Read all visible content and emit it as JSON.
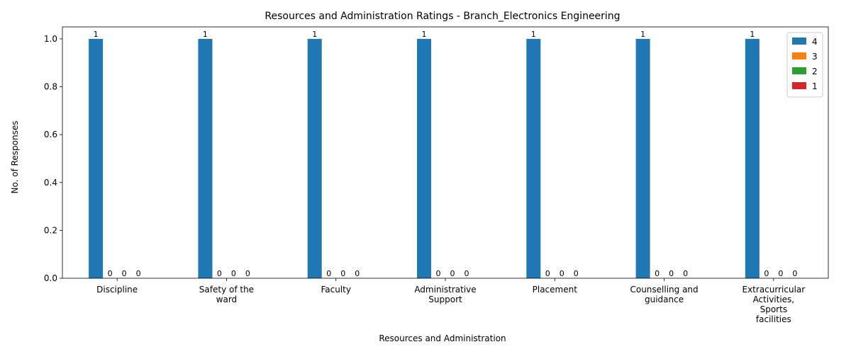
{
  "chart_data": {
    "type": "bar",
    "title": "Resources and Administration Ratings - Branch_Electronics Engineering",
    "xlabel": "Resources and Administration",
    "ylabel": "No. of Responses",
    "categories": [
      [
        "Discipline"
      ],
      [
        "Safety of the",
        "ward"
      ],
      [
        "Faculty"
      ],
      [
        "Administrative",
        "Support"
      ],
      [
        "Placement"
      ],
      [
        "Counselling and",
        "guidance"
      ],
      [
        "Extracurricular",
        "Activities,",
        "Sports",
        "facilities"
      ]
    ],
    "series": [
      {
        "name": "4",
        "color": "#1f77b4",
        "values": [
          1,
          1,
          1,
          1,
          1,
          1,
          1
        ]
      },
      {
        "name": "3",
        "color": "#ff7f0e",
        "values": [
          0,
          0,
          0,
          0,
          0,
          0,
          0
        ]
      },
      {
        "name": "2",
        "color": "#2ca02c",
        "values": [
          0,
          0,
          0,
          0,
          0,
          0,
          0
        ]
      },
      {
        "name": "1",
        "color": "#d62728",
        "values": [
          0,
          0,
          0,
          0,
          0,
          0,
          0
        ]
      }
    ],
    "ylim": [
      0,
      1.05
    ],
    "yticks": [
      "0.0",
      "0.2",
      "0.4",
      "0.6",
      "0.8",
      "1.0"
    ],
    "legend_position": "top-right",
    "grid": false
  }
}
